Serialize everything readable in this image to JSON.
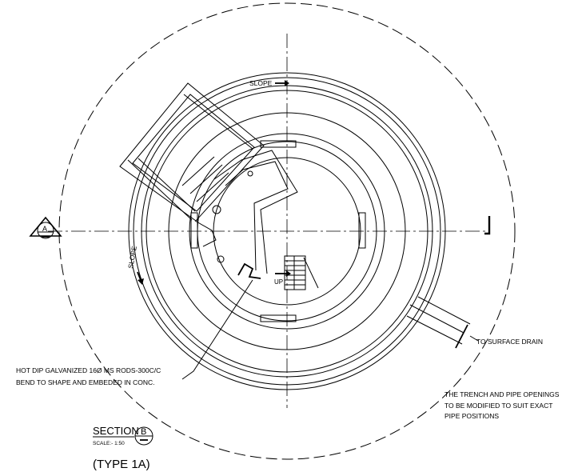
{
  "annotations": {
    "slope_top": "SLOPE",
    "slope_left": "SLOPE",
    "up": "UP",
    "surface_drain": "TO SURFACE DRAIN",
    "rods_line1": "HOT DIP GALVANIZED 16Ø MS RODS-300C/C",
    "rods_line2": "BEND TO SHAPE AND EMBEDED IN CONC.",
    "trench_line1": "THE TRENCH AND PIPE OPENINGS",
    "trench_line2": "TO BE MODIFIED TO SUIT EXACT",
    "trench_line3": "PIPE POSITIONS"
  },
  "section_marker": {
    "letter": "A"
  },
  "title_block": {
    "title": "SECTION",
    "letter": "B",
    "scale": "SCALE:- 1:50",
    "type": "(TYPE 1A)"
  }
}
